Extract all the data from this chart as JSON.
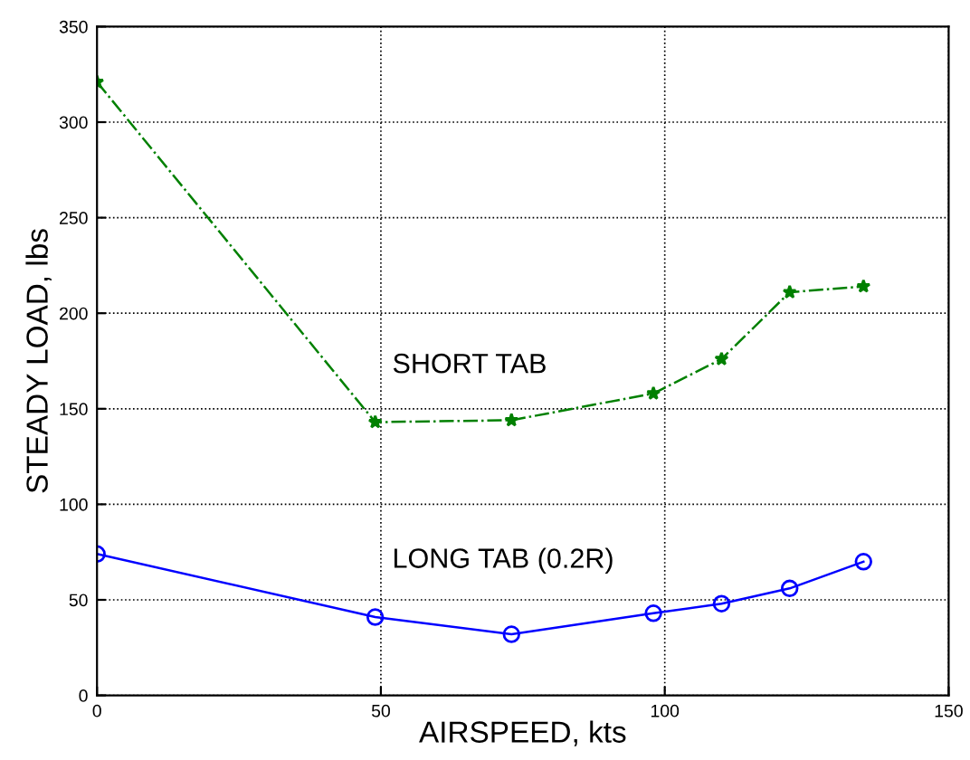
{
  "chart_data": {
    "type": "line",
    "xlabel": "AIRSPEED, kts",
    "ylabel": "STEADY LOAD, lbs",
    "xlim": [
      0,
      150
    ],
    "ylim": [
      0,
      350
    ],
    "xticks": [
      0,
      50,
      100,
      150
    ],
    "yticks": [
      0,
      50,
      100,
      150,
      200,
      250,
      300,
      350
    ],
    "grid": true,
    "series": [
      {
        "name": "SHORT TAB",
        "color": "#008000",
        "x": [
          0,
          49,
          73,
          98,
          110,
          122,
          135
        ],
        "values": [
          321,
          143,
          144,
          158,
          176,
          211,
          214
        ],
        "marker": "star",
        "line_style": "dashdot"
      },
      {
        "name": "LONG TAB (0.2R)",
        "color": "#0000ff",
        "x": [
          0,
          49,
          73,
          98,
          110,
          122,
          135
        ],
        "values": [
          74,
          41,
          32,
          43,
          48,
          56,
          70
        ],
        "marker": "circle",
        "line_style": "solid"
      }
    ]
  }
}
